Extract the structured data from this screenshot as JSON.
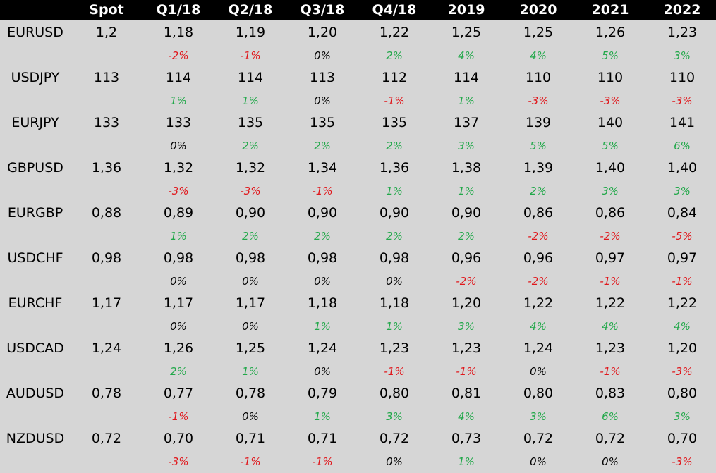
{
  "colors": {
    "positive": "#22a84a",
    "negative": "#e0161b",
    "neutral": "#000000",
    "header_bg": "#000000",
    "header_text": "#ffffff",
    "background": "#d6d6d6"
  },
  "columns": [
    "",
    "Spot",
    "Q1/18",
    "Q2/18",
    "Q3/18",
    "Q4/18",
    "2019",
    "2020",
    "2021",
    "2022"
  ],
  "rows": [
    {
      "pair": "EURUSD",
      "spot": "1,2",
      "values": [
        "1,18",
        "1,19",
        "1,20",
        "1,22",
        "1,25",
        "1,25",
        "1,26",
        "1,23"
      ],
      "changes": [
        "-2%",
        "-1%",
        "0%",
        "2%",
        "4%",
        "4%",
        "5%",
        "3%"
      ]
    },
    {
      "pair": "USDJPY",
      "spot": "113",
      "values": [
        "114",
        "114",
        "113",
        "112",
        "114",
        "110",
        "110",
        "110"
      ],
      "changes": [
        "1%",
        "1%",
        "0%",
        "-1%",
        "1%",
        "-3%",
        "-3%",
        "-3%"
      ]
    },
    {
      "pair": "EURJPY",
      "spot": "133",
      "values": [
        "133",
        "135",
        "135",
        "135",
        "137",
        "139",
        "140",
        "141"
      ],
      "changes": [
        "0%",
        "2%",
        "2%",
        "2%",
        "3%",
        "5%",
        "5%",
        "6%"
      ]
    },
    {
      "pair": "GBPUSD",
      "spot": "1,36",
      "values": [
        "1,32",
        "1,32",
        "1,34",
        "1,36",
        "1,38",
        "1,39",
        "1,40",
        "1,40"
      ],
      "changes": [
        "-3%",
        "-3%",
        "-1%",
        "1%",
        "1%",
        "2%",
        "3%",
        "3%"
      ]
    },
    {
      "pair": "EURGBP",
      "spot": "0,88",
      "values": [
        "0,89",
        "0,90",
        "0,90",
        "0,90",
        "0,90",
        "0,86",
        "0,86",
        "0,84"
      ],
      "changes": [
        "1%",
        "2%",
        "2%",
        "2%",
        "2%",
        "-2%",
        "-2%",
        "-5%"
      ]
    },
    {
      "pair": "USDCHF",
      "spot": "0,98",
      "values": [
        "0,98",
        "0,98",
        "0,98",
        "0,98",
        "0,96",
        "0,96",
        "0,97",
        "0,97"
      ],
      "changes": [
        "0%",
        "0%",
        "0%",
        "0%",
        "-2%",
        "-2%",
        "-1%",
        "-1%"
      ]
    },
    {
      "pair": "EURCHF",
      "spot": "1,17",
      "values": [
        "1,17",
        "1,17",
        "1,18",
        "1,18",
        "1,20",
        "1,22",
        "1,22",
        "1,22"
      ],
      "changes": [
        "0%",
        "0%",
        "1%",
        "1%",
        "3%",
        "4%",
        "4%",
        "4%"
      ]
    },
    {
      "pair": "USDCAD",
      "spot": "1,24",
      "values": [
        "1,26",
        "1,25",
        "1,24",
        "1,23",
        "1,23",
        "1,24",
        "1,23",
        "1,20"
      ],
      "changes": [
        "2%",
        "1%",
        "0%",
        "-1%",
        "-1%",
        "0%",
        "-1%",
        "-3%"
      ]
    },
    {
      "pair": "AUDUSD",
      "spot": "0,78",
      "values": [
        "0,77",
        "0,78",
        "0,79",
        "0,80",
        "0,81",
        "0,80",
        "0,83",
        "0,80"
      ],
      "changes": [
        "-1%",
        "0%",
        "1%",
        "3%",
        "4%",
        "3%",
        "6%",
        "3%"
      ]
    },
    {
      "pair": "NZDUSD",
      "spot": "0,72",
      "values": [
        "0,70",
        "0,71",
        "0,71",
        "0,72",
        "0,73",
        "0,72",
        "0,72",
        "0,70"
      ],
      "changes": [
        "-3%",
        "-1%",
        "-1%",
        "0%",
        "1%",
        "0%",
        "0%",
        "-3%"
      ]
    }
  ]
}
